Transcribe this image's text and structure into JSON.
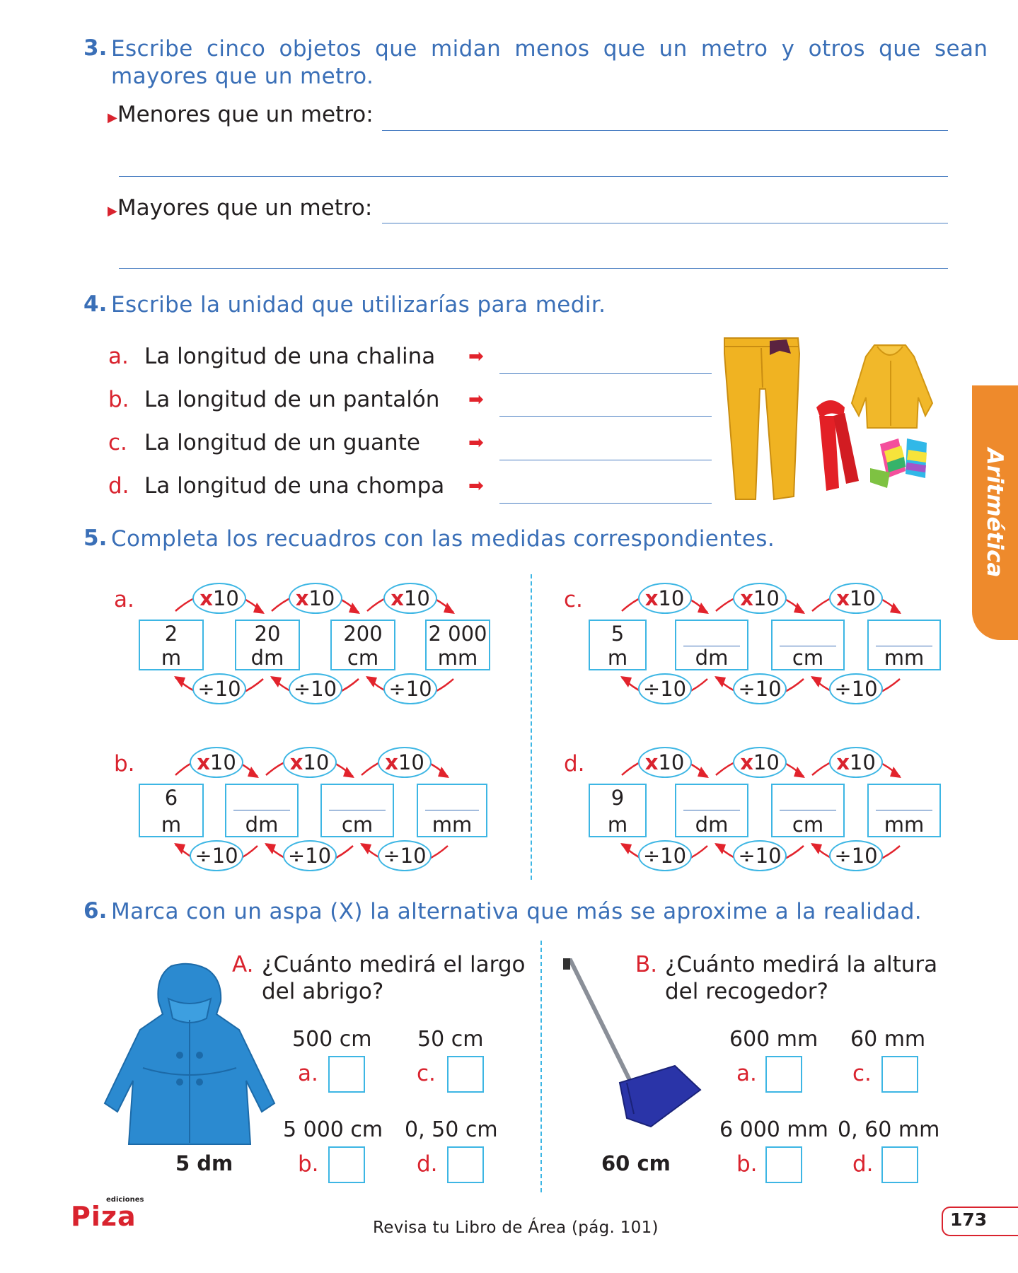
{
  "side_tab": "Aritmética",
  "q3": {
    "number": "3.",
    "text_line1": "Escribe cinco objetos que midan menos que un metro y otros que sean",
    "text_line2": "mayores que un metro.",
    "less_label": "Menores que un metro:",
    "more_label": "Mayores que un metro:"
  },
  "q4": {
    "number": "4.",
    "text": "Escribe la unidad que utilizarías para medir.",
    "items": [
      {
        "letter": "a.",
        "text": "La longitud de una chalina"
      },
      {
        "letter": "b.",
        "text": "La longitud de un pantalón"
      },
      {
        "letter": "c.",
        "text": "La longitud de un guante"
      },
      {
        "letter": "d.",
        "text": "La longitud de una chompa"
      }
    ]
  },
  "q5": {
    "number": "5.",
    "text": "Completa los recuadros con las medidas correspondientes.",
    "mult_op": "x",
    "div_op": "÷",
    "factor": "10",
    "groups": [
      {
        "letter": "a.",
        "boxes": [
          {
            "value": "2",
            "unit": "m"
          },
          {
            "value": "20",
            "unit": "dm"
          },
          {
            "value": "200",
            "unit": "cm"
          },
          {
            "value": "2 000",
            "unit": "mm"
          }
        ]
      },
      {
        "letter": "b.",
        "boxes": [
          {
            "value": "6",
            "unit": "m"
          },
          {
            "value": "",
            "unit": "dm"
          },
          {
            "value": "",
            "unit": "cm"
          },
          {
            "value": "",
            "unit": "mm"
          }
        ]
      },
      {
        "letter": "c.",
        "boxes": [
          {
            "value": "5",
            "unit": "m"
          },
          {
            "value": "",
            "unit": "dm"
          },
          {
            "value": "",
            "unit": "cm"
          },
          {
            "value": "",
            "unit": "mm"
          }
        ]
      },
      {
        "letter": "d.",
        "boxes": [
          {
            "value": "9",
            "unit": "m"
          },
          {
            "value": "",
            "unit": "dm"
          },
          {
            "value": "",
            "unit": "cm"
          },
          {
            "value": "",
            "unit": "mm"
          }
        ]
      }
    ]
  },
  "q6": {
    "number": "6.",
    "text": "Marca con un aspa (X) la alternativa que más se aproxime a la realidad.",
    "A": {
      "letter": "A.",
      "question_line1": "¿Cuánto medirá el largo",
      "question_line2": "del abrigo?",
      "image_caption": "5 dm",
      "options": [
        {
          "letter": "a.",
          "value": "500 cm"
        },
        {
          "letter": "c.",
          "value": "50 cm"
        },
        {
          "letter": "b.",
          "value": "5 000 cm"
        },
        {
          "letter": "d.",
          "value": "0, 50 cm"
        }
      ]
    },
    "B": {
      "letter": "B.",
      "question_line1": "¿Cuánto medirá la altura",
      "question_line2": "del recogedor?",
      "image_caption": "60 cm",
      "options": [
        {
          "letter": "a.",
          "value": "600 mm"
        },
        {
          "letter": "c.",
          "value": "60 mm"
        },
        {
          "letter": "b.",
          "value": "6 000 mm"
        },
        {
          "letter": "d.",
          "value": "0, 60 mm"
        }
      ]
    }
  },
  "footer": {
    "publisher_small": "ediciones",
    "publisher_logo": "Piza",
    "reference": "Revisa tu Libro de Área (pág. 101)",
    "page_number": "173"
  }
}
